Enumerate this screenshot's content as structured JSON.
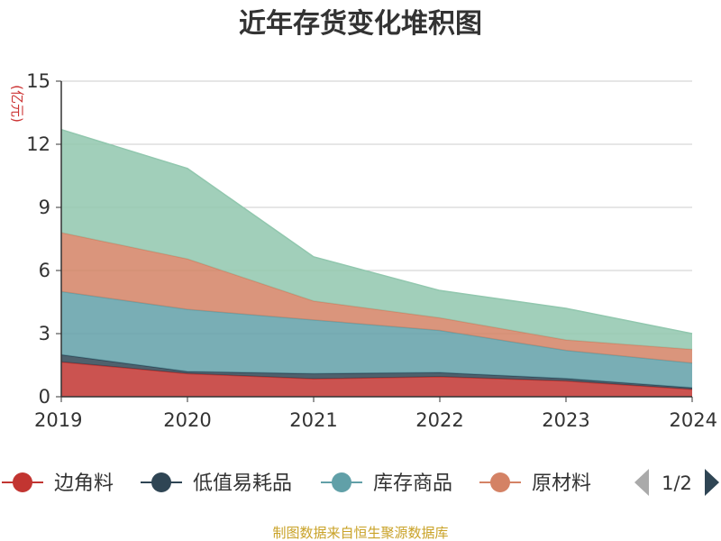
{
  "chart_data": {
    "type": "area",
    "stacked": true,
    "title": "近年存货变化堆积图",
    "ylabel": "(亿元)",
    "xlabel": "",
    "categories": [
      "2019",
      "2020",
      "2021",
      "2022",
      "2023",
      "2024"
    ],
    "ylim": [
      0,
      15
    ],
    "yticks": [
      0,
      3,
      6,
      9,
      12,
      15
    ],
    "grid": true,
    "series": [
      {
        "name": "边角料",
        "color": "#c23531",
        "values": [
          1.65,
          1.1,
          0.85,
          0.95,
          0.75,
          0.35
        ]
      },
      {
        "name": "低值易耗品",
        "color": "#2f4554",
        "values": [
          0.35,
          0.1,
          0.25,
          0.2,
          0.12,
          0.08
        ]
      },
      {
        "name": "库存商品",
        "color": "#61a0a8",
        "values": [
          3.0,
          2.95,
          2.55,
          2.0,
          1.33,
          1.17
        ]
      },
      {
        "name": "原材料",
        "color": "#d48265",
        "values": [
          2.8,
          2.4,
          0.9,
          0.6,
          0.5,
          0.65
        ]
      },
      {
        "name": "",
        "color": "#91c7ae",
        "values": [
          4.9,
          4.3,
          2.1,
          1.3,
          1.5,
          0.75
        ]
      }
    ],
    "legend": {
      "placement": "bottom",
      "visible_items": [
        "边角料",
        "低值易耗品",
        "库存商品",
        "原材料"
      ],
      "page": "1/2"
    },
    "source": "制图数据来自恒生聚源数据库"
  }
}
